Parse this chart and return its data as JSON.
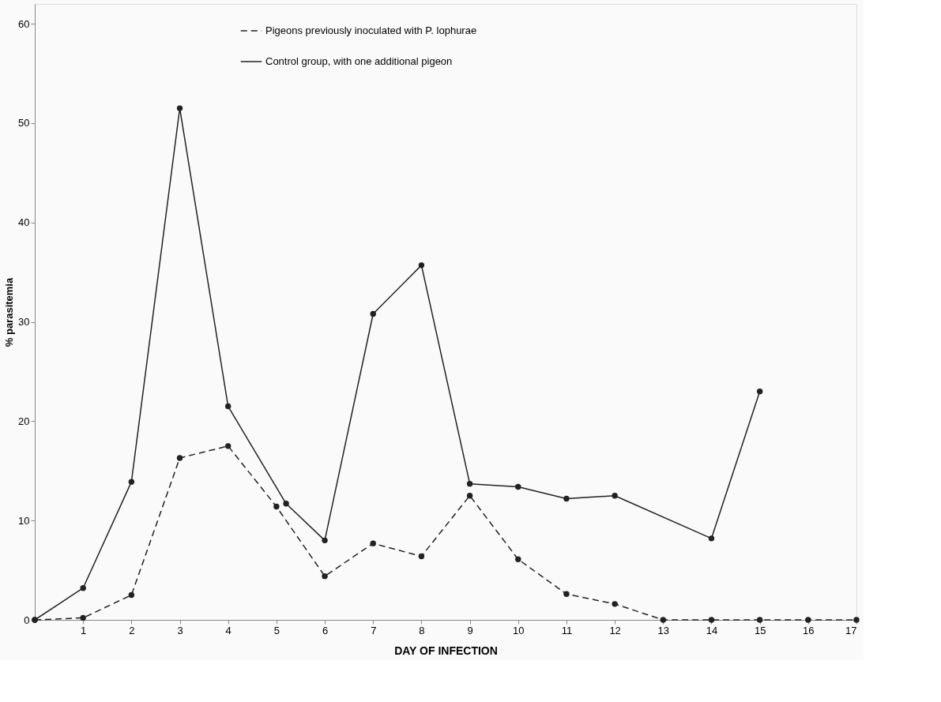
{
  "chart_data": {
    "type": "line",
    "xlabel": "DAY OF INFECTION",
    "ylabel": "% parasitemia",
    "xlim": [
      0,
      17
    ],
    "xticks": [
      1,
      2,
      3,
      4,
      5,
      6,
      7,
      8,
      9,
      10,
      11,
      12,
      13,
      14,
      15,
      16,
      17
    ],
    "ylim": [
      0,
      62
    ],
    "yticks": [
      0,
      10,
      20,
      30,
      40,
      50,
      60
    ],
    "grid": false,
    "legend": "top",
    "marker": "circle",
    "series": [
      {
        "name": "Pigeons previously inoculated with P. lophurae",
        "color": "#222222",
        "line_style": "dashed",
        "x": [
          0,
          1,
          2,
          3,
          4,
          5,
          6,
          7,
          8,
          9,
          10,
          11,
          12,
          13,
          14,
          15,
          16,
          17
        ],
        "values": [
          0,
          0.2,
          2.5,
          16.3,
          17.5,
          11.4,
          4.4,
          7.7,
          6.4,
          12.5,
          6.1,
          2.6,
          1.6,
          0,
          0,
          0,
          0,
          0
        ]
      },
      {
        "name": "Control group, with one additional pigeon",
        "color": "#222222",
        "line_style": "solid",
        "x": [
          0,
          1,
          2,
          3,
          4,
          5.2,
          6,
          7,
          8,
          9,
          10,
          11,
          12,
          14,
          15
        ],
        "values": [
          0,
          3.2,
          13.9,
          51.5,
          21.5,
          11.7,
          8.0,
          30.8,
          35.7,
          13.7,
          13.4,
          12.2,
          12.5,
          8.2,
          23.0
        ]
      }
    ]
  }
}
